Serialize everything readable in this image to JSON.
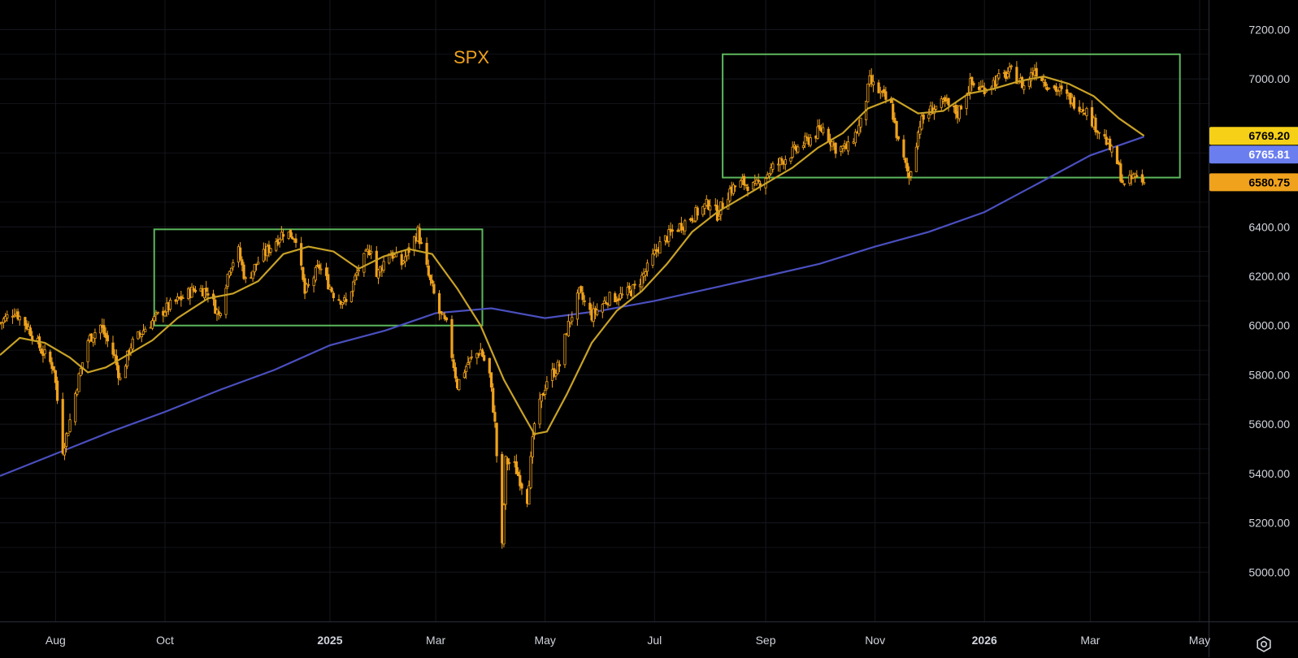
{
  "chart_data": {
    "type": "candlestick",
    "title": "SPX",
    "y_range": [
      4800,
      7320
    ],
    "y_ticks": [
      5000,
      5200,
      5400,
      5600,
      5800,
      6000,
      6200,
      6400,
      7000,
      7200
    ],
    "y_tick_labels": [
      "5000.00",
      "5200.00",
      "5400.00",
      "5600.00",
      "5800.00",
      "6000.00",
      "6200.00",
      "6400.00",
      "7000.00",
      "7200.00"
    ],
    "x_range": [
      "2024-07-01",
      "2026-05-06"
    ],
    "x_ticks": [
      {
        "label": "Aug",
        "date": "2024-08-01",
        "bold": false
      },
      {
        "label": "Oct",
        "date": "2024-10-01",
        "bold": false
      },
      {
        "label": "2025",
        "date": "2025-01-01",
        "bold": true
      },
      {
        "label": "Mar",
        "date": "2025-03-01",
        "bold": false
      },
      {
        "label": "May",
        "date": "2025-05-01",
        "bold": false
      },
      {
        "label": "Jul",
        "date": "2025-07-01",
        "bold": false
      },
      {
        "label": "Sep",
        "date": "2025-09-01",
        "bold": false
      },
      {
        "label": "Nov",
        "date": "2025-11-01",
        "bold": false
      },
      {
        "label": "2026",
        "date": "2026-01-01",
        "bold": true
      },
      {
        "label": "Mar",
        "date": "2026-03-01",
        "bold": false
      },
      {
        "label": "May",
        "date": "2026-05-01",
        "bold": false
      }
    ],
    "grid": true,
    "candle_color": "#f0a21c",
    "price_closes": [
      [
        "2024-07-01",
        6010
      ],
      [
        "2024-07-09",
        6060
      ],
      [
        "2024-07-17",
        5990
      ],
      [
        "2024-07-24",
        5900
      ],
      [
        "2024-07-31",
        5830
      ],
      [
        "2024-08-05",
        5500
      ],
      [
        "2024-08-08",
        5580
      ],
      [
        "2024-08-13",
        5760
      ],
      [
        "2024-08-19",
        5940
      ],
      [
        "2024-08-26",
        6000
      ],
      [
        "2024-09-03",
        5870
      ],
      [
        "2024-09-06",
        5780
      ],
      [
        "2024-09-12",
        5920
      ],
      [
        "2024-09-20",
        5990
      ],
      [
        "2024-09-30",
        6060
      ],
      [
        "2024-10-08",
        6100
      ],
      [
        "2024-10-18",
        6150
      ],
      [
        "2024-10-25",
        6140
      ],
      [
        "2024-10-31",
        6040
      ],
      [
        "2024-11-06",
        6240
      ],
      [
        "2024-11-11",
        6300
      ],
      [
        "2024-11-15",
        6180
      ],
      [
        "2024-11-22",
        6260
      ],
      [
        "2024-11-29",
        6320
      ],
      [
        "2024-12-06",
        6380
      ],
      [
        "2024-12-13",
        6360
      ],
      [
        "2024-12-18",
        6130
      ],
      [
        "2024-12-26",
        6240
      ],
      [
        "2025-01-03",
        6130
      ],
      [
        "2025-01-10",
        6090
      ],
      [
        "2025-01-17",
        6230
      ],
      [
        "2025-01-24",
        6320
      ],
      [
        "2025-01-27",
        6200
      ],
      [
        "2025-02-03",
        6300
      ],
      [
        "2025-02-10",
        6250
      ],
      [
        "2025-02-19",
        6380
      ],
      [
        "2025-02-25",
        6200
      ],
      [
        "2025-03-03",
        6050
      ],
      [
        "2025-03-07",
        6000
      ],
      [
        "2025-03-13",
        5760
      ],
      [
        "2025-03-19",
        5850
      ],
      [
        "2025-03-26",
        5900
      ],
      [
        "2025-03-31",
        5800
      ],
      [
        "2025-04-03",
        5600
      ],
      [
        "2025-04-07",
        5100
      ],
      [
        "2025-04-09",
        5450
      ],
      [
        "2025-04-14",
        5430
      ],
      [
        "2025-04-21",
        5300
      ],
      [
        "2025-04-25",
        5600
      ],
      [
        "2025-05-02",
        5780
      ],
      [
        "2025-05-09",
        5840
      ],
      [
        "2025-05-13",
        5980
      ],
      [
        "2025-05-20",
        6130
      ],
      [
        "2025-05-27",
        6040
      ],
      [
        "2025-06-05",
        6110
      ],
      [
        "2025-06-13",
        6120
      ],
      [
        "2025-06-20",
        6150
      ],
      [
        "2025-06-27",
        6230
      ],
      [
        "2025-07-03",
        6320
      ],
      [
        "2025-07-11",
        6380
      ],
      [
        "2025-07-18",
        6420
      ],
      [
        "2025-07-25",
        6460
      ],
      [
        "2025-08-01",
        6500
      ],
      [
        "2025-08-05",
        6450
      ],
      [
        "2025-08-12",
        6550
      ],
      [
        "2025-08-19",
        6580
      ],
      [
        "2025-08-26",
        6560
      ],
      [
        "2025-09-05",
        6640
      ],
      [
        "2025-09-12",
        6680
      ],
      [
        "2025-09-19",
        6720
      ],
      [
        "2025-09-26",
        6760
      ],
      [
        "2025-10-03",
        6800
      ],
      [
        "2025-10-10",
        6720
      ],
      [
        "2025-10-17",
        6720
      ],
      [
        "2025-10-24",
        6820
      ],
      [
        "2025-10-29",
        6990
      ],
      [
        "2025-11-04",
        6940
      ],
      [
        "2025-11-10",
        6890
      ],
      [
        "2025-11-14",
        6740
      ],
      [
        "2025-11-20",
        6600
      ],
      [
        "2025-11-26",
        6820
      ],
      [
        "2025-12-03",
        6880
      ],
      [
        "2025-12-10",
        6900
      ],
      [
        "2025-12-17",
        6860
      ],
      [
        "2025-12-24",
        6980
      ],
      [
        "2025-12-31",
        6960
      ],
      [
        "2026-01-09",
        7000
      ],
      [
        "2026-01-16",
        7030
      ],
      [
        "2026-01-23",
        6970
      ],
      [
        "2026-01-29",
        7040
      ],
      [
        "2026-02-05",
        6980
      ],
      [
        "2026-02-12",
        6950
      ],
      [
        "2026-02-19",
        6910
      ],
      [
        "2026-02-26",
        6880
      ],
      [
        "2026-03-03",
        6820
      ],
      [
        "2026-03-09",
        6760
      ],
      [
        "2026-03-16",
        6660
      ],
      [
        "2026-03-20",
        6560
      ],
      [
        "2026-03-26",
        6610
      ],
      [
        "2026-03-31",
        6580
      ]
    ],
    "ma_short": [
      [
        "2024-07-01",
        5880
      ],
      [
        "2024-07-12",
        5950
      ],
      [
        "2024-07-26",
        5930
      ],
      [
        "2024-08-09",
        5870
      ],
      [
        "2024-08-19",
        5810
      ],
      [
        "2024-08-29",
        5830
      ],
      [
        "2024-09-10",
        5880
      ],
      [
        "2024-09-24",
        5940
      ],
      [
        "2024-10-08",
        6030
      ],
      [
        "2024-10-25",
        6110
      ],
      [
        "2024-11-08",
        6130
      ],
      [
        "2024-11-22",
        6180
      ],
      [
        "2024-12-06",
        6290
      ],
      [
        "2024-12-20",
        6320
      ],
      [
        "2025-01-03",
        6300
      ],
      [
        "2025-01-17",
        6230
      ],
      [
        "2025-01-31",
        6280
      ],
      [
        "2025-02-14",
        6310
      ],
      [
        "2025-02-27",
        6290
      ],
      [
        "2025-03-13",
        6150
      ],
      [
        "2025-03-26",
        6000
      ],
      [
        "2025-04-08",
        5780
      ],
      [
        "2025-04-18",
        5650
      ],
      [
        "2025-04-25",
        5560
      ],
      [
        "2025-05-02",
        5570
      ],
      [
        "2025-05-13",
        5720
      ],
      [
        "2025-05-27",
        5930
      ],
      [
        "2025-06-10",
        6060
      ],
      [
        "2025-06-24",
        6140
      ],
      [
        "2025-07-08",
        6250
      ],
      [
        "2025-07-22",
        6380
      ],
      [
        "2025-08-05",
        6460
      ],
      [
        "2025-08-19",
        6520
      ],
      [
        "2025-09-02",
        6580
      ],
      [
        "2025-09-16",
        6640
      ],
      [
        "2025-09-30",
        6720
      ],
      [
        "2025-10-14",
        6780
      ],
      [
        "2025-10-28",
        6880
      ],
      [
        "2025-11-11",
        6920
      ],
      [
        "2025-11-25",
        6860
      ],
      [
        "2025-12-09",
        6870
      ],
      [
        "2025-12-23",
        6940
      ],
      [
        "2026-01-06",
        6960
      ],
      [
        "2026-01-20",
        6990
      ],
      [
        "2026-02-03",
        7010
      ],
      [
        "2026-02-17",
        6980
      ],
      [
        "2026-03-03",
        6930
      ],
      [
        "2026-03-17",
        6840
      ],
      [
        "2026-03-31",
        6769.2
      ]
    ],
    "ma_long": [
      [
        "2024-07-01",
        5390
      ],
      [
        "2024-08-01",
        5480
      ],
      [
        "2024-09-01",
        5570
      ],
      [
        "2024-10-01",
        5650
      ],
      [
        "2024-11-01",
        5740
      ],
      [
        "2024-12-01",
        5820
      ],
      [
        "2025-01-01",
        5920
      ],
      [
        "2025-02-01",
        5980
      ],
      [
        "2025-03-01",
        6050
      ],
      [
        "2025-04-01",
        6070
      ],
      [
        "2025-05-01",
        6030
      ],
      [
        "2025-06-01",
        6060
      ],
      [
        "2025-07-01",
        6100
      ],
      [
        "2025-08-01",
        6150
      ],
      [
        "2025-09-01",
        6200
      ],
      [
        "2025-10-01",
        6250
      ],
      [
        "2025-11-01",
        6320
      ],
      [
        "2025-12-01",
        6380
      ],
      [
        "2026-01-01",
        6460
      ],
      [
        "2026-02-01",
        6580
      ],
      [
        "2026-03-01",
        6690
      ],
      [
        "2026-03-31",
        6765.81
      ]
    ],
    "ma_short_color": "#c9a227",
    "ma_long_color": "#4a4fbf",
    "rectangles": [
      {
        "x1": "2024-09-25",
        "x2": "2025-03-27",
        "y1": 6000,
        "y2": 6390,
        "color": "#5cb85c"
      },
      {
        "x1": "2025-08-08",
        "x2": "2026-04-20",
        "y1": 6600,
        "y2": 7100,
        "color": "#5cb85c"
      }
    ],
    "price_labels": [
      {
        "text": "6769.20",
        "value": 6769.2,
        "bg": "#f5d016",
        "fg": "#000000"
      },
      {
        "text": "6765.81",
        "value": 6765.81,
        "bg": "#6b7ef0",
        "fg": "#ffffff"
      },
      {
        "text": "6580.75",
        "value": 6580.75,
        "bg": "#f0a21c",
        "fg": "#000000"
      }
    ]
  },
  "toolbar": {
    "settings_icon": "settings-gear-icon"
  }
}
